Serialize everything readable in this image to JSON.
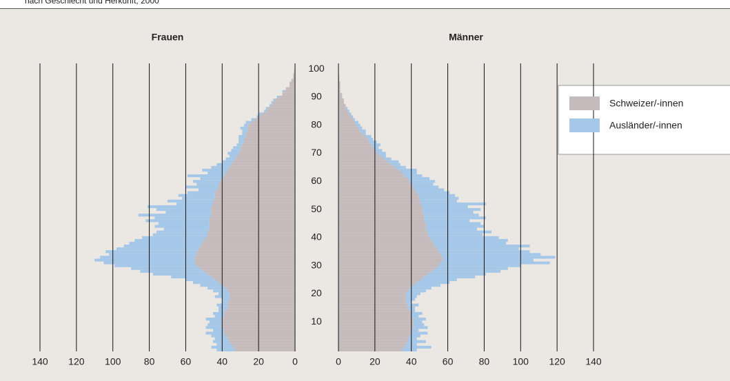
{
  "chart_data": {
    "type": "pyramid",
    "subtitle": "nach Geschlecht und Herkunft, 2000",
    "series": [
      {
        "name": "Schweizer/-innen",
        "color": "#c5bbbc"
      },
      {
        "name": "Ausländer/-innen",
        "color": "#a5c7e8"
      }
    ],
    "categories": [
      0,
      1,
      2,
      3,
      4,
      5,
      6,
      7,
      8,
      9,
      10,
      11,
      12,
      13,
      14,
      15,
      16,
      17,
      18,
      19,
      20,
      21,
      22,
      23,
      24,
      25,
      26,
      27,
      28,
      29,
      30,
      31,
      32,
      33,
      34,
      35,
      36,
      37,
      38,
      39,
      40,
      41,
      42,
      43,
      44,
      45,
      46,
      47,
      48,
      49,
      50,
      51,
      52,
      53,
      54,
      55,
      56,
      57,
      58,
      59,
      60,
      61,
      62,
      63,
      64,
      65,
      66,
      67,
      68,
      69,
      70,
      71,
      72,
      73,
      74,
      75,
      76,
      77,
      78,
      79,
      80,
      81,
      82,
      83,
      84,
      85,
      86,
      87,
      88,
      89,
      90,
      91,
      92,
      93,
      94,
      95,
      96,
      97,
      98,
      99,
      100
    ],
    "ylim": [
      -0.5,
      102
    ],
    "yticks": [
      10,
      20,
      30,
      40,
      50,
      60,
      70,
      80,
      90,
      100
    ],
    "xlim": [
      0,
      140
    ],
    "xticks": [
      0,
      20,
      40,
      60,
      80,
      100,
      120,
      140
    ],
    "grid": true,
    "legend": "right",
    "panels": [
      {
        "title": "Frauen",
        "direction": "left",
        "values": [
          [
            33,
            34,
            35,
            36,
            37,
            38,
            39,
            39,
            40,
            40,
            40,
            40,
            39,
            39,
            38,
            37,
            37,
            37,
            36,
            36,
            36,
            37,
            38,
            40,
            42,
            44,
            46,
            48,
            50,
            52,
            54,
            55,
            55,
            55,
            54,
            54,
            53,
            52,
            51,
            50,
            49,
            48,
            48,
            47,
            47,
            47,
            47,
            47,
            46,
            46,
            46,
            46,
            45,
            45,
            44,
            44,
            44,
            43,
            42,
            42,
            41,
            40,
            39,
            38,
            37,
            36,
            35,
            34,
            33,
            32,
            31,
            30,
            30,
            29,
            28,
            28,
            27,
            27,
            26,
            26,
            26,
            24,
            22,
            20,
            18,
            16,
            15,
            13,
            12,
            11,
            9,
            7,
            6,
            5,
            3,
            3,
            2,
            1,
            1,
            0.5,
            0.3
          ],
          [
            10,
            12,
            8,
            9,
            7,
            8,
            10,
            6,
            9,
            8,
            7,
            9,
            5,
            6,
            4,
            5,
            6,
            3,
            4,
            8,
            6,
            8,
            10,
            12,
            14,
            16,
            22,
            30,
            35,
            38,
            45,
            50,
            55,
            52,
            48,
            50,
            45,
            42,
            40,
            38,
            35,
            30,
            28,
            25,
            30,
            28,
            35,
            30,
            40,
            25,
            30,
            35,
            20,
            25,
            18,
            20,
            15,
            10,
            18,
            12,
            15,
            12,
            20,
            10,
            14,
            10,
            8,
            6,
            5,
            4,
            6,
            5,
            4,
            3,
            3,
            3,
            4,
            2,
            3,
            4,
            2,
            3,
            2,
            1,
            2,
            1,
            1,
            1,
            1,
            1,
            1,
            0,
            1,
            0,
            0,
            0,
            0,
            0,
            0,
            0,
            0
          ]
        ]
      },
      {
        "title": "Männer",
        "direction": "right",
        "values": [
          [
            35,
            36,
            37,
            38,
            38,
            39,
            40,
            40,
            41,
            41,
            41,
            41,
            40,
            40,
            39,
            38,
            38,
            37,
            37,
            37,
            37,
            38,
            39,
            41,
            43,
            45,
            47,
            49,
            51,
            53,
            55,
            56,
            57,
            57,
            56,
            55,
            54,
            53,
            52,
            51,
            50,
            49,
            49,
            48,
            48,
            48,
            47,
            47,
            47,
            46,
            46,
            46,
            45,
            45,
            44,
            44,
            43,
            42,
            41,
            40,
            39,
            38,
            36,
            35,
            33,
            31,
            29,
            27,
            25,
            23,
            21,
            20,
            19,
            18,
            17,
            16,
            15,
            13,
            12,
            11,
            10,
            9,
            8,
            7,
            6,
            5,
            4,
            4,
            3,
            3,
            2,
            2,
            1,
            1,
            1,
            1,
            0.5,
            0.5,
            0.3,
            0.2,
            0.1
          ],
          [
            8,
            15,
            6,
            10,
            5,
            6,
            9,
            4,
            8,
            6,
            5,
            7,
            4,
            6,
            3,
            4,
            6,
            3,
            5,
            6,
            8,
            10,
            12,
            15,
            18,
            20,
            28,
            32,
            38,
            40,
            45,
            60,
            50,
            62,
            55,
            50,
            45,
            52,
            40,
            42,
            38,
            30,
            35,
            28,
            32,
            30,
            25,
            34,
            30,
            28,
            32,
            25,
            36,
            20,
            22,
            20,
            18,
            16,
            14,
            12,
            14,
            12,
            10,
            8,
            10,
            6,
            5,
            6,
            4,
            3,
            5,
            4,
            3,
            5,
            4,
            3,
            3,
            2,
            3,
            2,
            2,
            2,
            1,
            1,
            1,
            1,
            1,
            0,
            0,
            0,
            0,
            0,
            0,
            0,
            0,
            0,
            0,
            0,
            0,
            0,
            0
          ]
        ]
      }
    ]
  }
}
